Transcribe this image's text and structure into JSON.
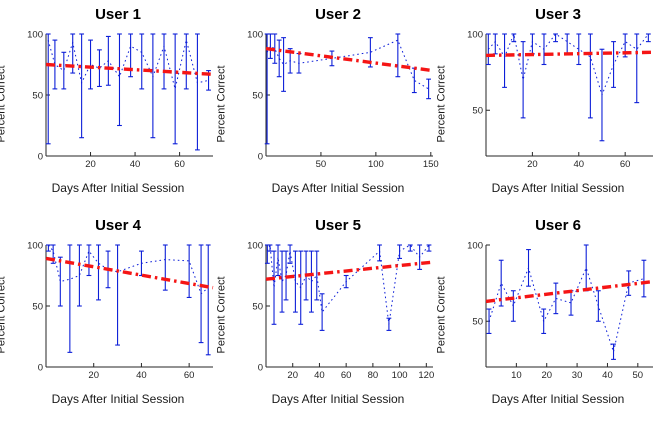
{
  "figure": {
    "xlabel": "Days After Initial Session",
    "ylabel": "Percent Correct"
  },
  "colors": {
    "axis": "#262626",
    "data": "#0d1fd8",
    "trend": "#f51515"
  },
  "chart_data": [
    {
      "type": "line",
      "title": "User 1",
      "xlabel": "Days After Initial Session",
      "ylabel": "Percent Correct",
      "xlim": [
        0,
        75
      ],
      "ylim": [
        0,
        100
      ],
      "xticks": [
        20,
        40,
        60
      ],
      "yticks": [
        0,
        50,
        100
      ],
      "grid": false,
      "legend": "none",
      "series": [
        {
          "name": "session-scores",
          "style": "dotted-errorbar",
          "x": [
            1,
            4,
            8,
            12,
            16,
            20,
            24,
            28,
            33,
            38,
            43,
            48,
            53,
            58,
            63,
            68,
            73
          ],
          "y": [
            95,
            75,
            70,
            93,
            60,
            75,
            72,
            78,
            65,
            90,
            85,
            65,
            90,
            55,
            95,
            60,
            62
          ],
          "err": [
            85,
            20,
            15,
            25,
            45,
            20,
            15,
            20,
            40,
            25,
            30,
            50,
            35,
            45,
            40,
            55,
            8
          ]
        },
        {
          "name": "linear-fit",
          "style": "dashdot",
          "x": [
            0,
            75
          ],
          "y": [
            75,
            67
          ]
        }
      ]
    },
    {
      "type": "line",
      "title": "User 2",
      "xlabel": "Days After Initial Session",
      "ylabel": "Percent Correct",
      "xlim": [
        0,
        152
      ],
      "ylim": [
        0,
        100
      ],
      "xticks": [
        50,
        100,
        150
      ],
      "yticks": [
        0,
        50,
        100
      ],
      "grid": false,
      "legend": "none",
      "series": [
        {
          "name": "session-scores",
          "style": "dotted-errorbar",
          "x": [
            1,
            4,
            8,
            12,
            16,
            22,
            30,
            60,
            95,
            120,
            135,
            148
          ],
          "y": [
            85,
            90,
            88,
            80,
            75,
            78,
            76,
            80,
            85,
            95,
            62,
            55
          ],
          "err": [
            75,
            10,
            12,
            15,
            22,
            10,
            8,
            6,
            12,
            30,
            10,
            8
          ]
        },
        {
          "name": "linear-fit",
          "style": "dashdot",
          "x": [
            0,
            152
          ],
          "y": [
            88,
            70
          ]
        }
      ]
    },
    {
      "type": "line",
      "title": "User 3",
      "xlabel": "Days After Initial Session",
      "ylabel": "Percent Correct",
      "xlim": [
        0,
        72
      ],
      "ylim": [
        20,
        100
      ],
      "xticks": [
        20,
        40,
        60
      ],
      "yticks": [
        50,
        100
      ],
      "grid": false,
      "legend": "none",
      "series": [
        {
          "name": "session-scores",
          "style": "dotted-errorbar",
          "x": [
            1,
            4,
            8,
            12,
            16,
            20,
            25,
            30,
            35,
            40,
            45,
            50,
            55,
            60,
            65,
            70
          ],
          "y": [
            90,
            95,
            85,
            100,
            70,
            95,
            90,
            100,
            95,
            90,
            85,
            60,
            80,
            95,
            90,
            100
          ],
          "err": [
            10,
            8,
            20,
            5,
            25,
            8,
            10,
            5,
            8,
            10,
            40,
            30,
            15,
            10,
            35,
            5
          ]
        },
        {
          "name": "linear-fit",
          "style": "dashdot",
          "x": [
            0,
            72
          ],
          "y": [
            86,
            88
          ]
        }
      ]
    },
    {
      "type": "line",
      "title": "User 4",
      "xlabel": "Days After Initial Session",
      "ylabel": "Percent Correct",
      "xlim": [
        0,
        70
      ],
      "ylim": [
        0,
        100
      ],
      "xticks": [
        20,
        40,
        60
      ],
      "yticks": [
        0,
        50,
        100
      ],
      "grid": false,
      "legend": "none",
      "series": [
        {
          "name": "session-scores",
          "style": "dotted-errorbar",
          "x": [
            1,
            3,
            6,
            10,
            14,
            18,
            22,
            26,
            30,
            40,
            50,
            60,
            65,
            68
          ],
          "y": [
            100,
            95,
            70,
            72,
            75,
            95,
            85,
            80,
            78,
            85,
            88,
            87,
            60,
            65
          ],
          "err": [
            5,
            10,
            20,
            60,
            25,
            20,
            30,
            15,
            60,
            10,
            25,
            30,
            40,
            55
          ]
        },
        {
          "name": "linear-fit",
          "style": "dashdot",
          "x": [
            0,
            70
          ],
          "y": [
            89,
            65
          ]
        }
      ]
    },
    {
      "type": "line",
      "title": "User 5",
      "xlabel": "Days After Initial Session",
      "ylabel": "Percent Correct",
      "xlim": [
        0,
        125
      ],
      "ylim": [
        0,
        100
      ],
      "xticks": [
        20,
        40,
        60,
        80,
        100,
        120
      ],
      "yticks": [
        0,
        50,
        100
      ],
      "grid": false,
      "legend": "none",
      "series": [
        {
          "name": "session-scores",
          "style": "dotted-errorbar",
          "x": [
            1,
            3,
            6,
            9,
            12,
            15,
            18,
            22,
            26,
            30,
            34,
            38,
            42,
            60,
            85,
            92,
            100,
            108,
            115,
            122
          ],
          "y": [
            95,
            100,
            65,
            90,
            70,
            75,
            95,
            70,
            65,
            75,
            70,
            75,
            45,
            70,
            95,
            35,
            95,
            100,
            90,
            100
          ],
          "err": [
            10,
            5,
            30,
            15,
            25,
            20,
            10,
            25,
            30,
            20,
            25,
            20,
            15,
            5,
            8,
            5,
            6,
            5,
            10,
            5
          ]
        },
        {
          "name": "linear-fit",
          "style": "dashdot",
          "x": [
            0,
            125
          ],
          "y": [
            72,
            86
          ]
        }
      ]
    },
    {
      "type": "line",
      "title": "User 6",
      "xlabel": "Days After Initial Session",
      "ylabel": "Percent Correct",
      "xlim": [
        0,
        55
      ],
      "ylim": [
        20,
        100
      ],
      "xticks": [
        10,
        20,
        30,
        40,
        50
      ],
      "yticks": [
        50,
        100
      ],
      "grid": false,
      "legend": "none",
      "series": [
        {
          "name": "session-scores",
          "style": "dotted-errorbar",
          "x": [
            1,
            5,
            9,
            14,
            19,
            23,
            28,
            33,
            37,
            42,
            47,
            52
          ],
          "y": [
            50,
            75,
            60,
            85,
            50,
            65,
            62,
            85,
            60,
            30,
            75,
            78
          ],
          "err": [
            8,
            15,
            10,
            12,
            8,
            10,
            8,
            15,
            10,
            5,
            8,
            12
          ]
        },
        {
          "name": "linear-fit",
          "style": "dashdot",
          "x": [
            0,
            55
          ],
          "y": [
            63,
            76
          ]
        }
      ]
    }
  ]
}
